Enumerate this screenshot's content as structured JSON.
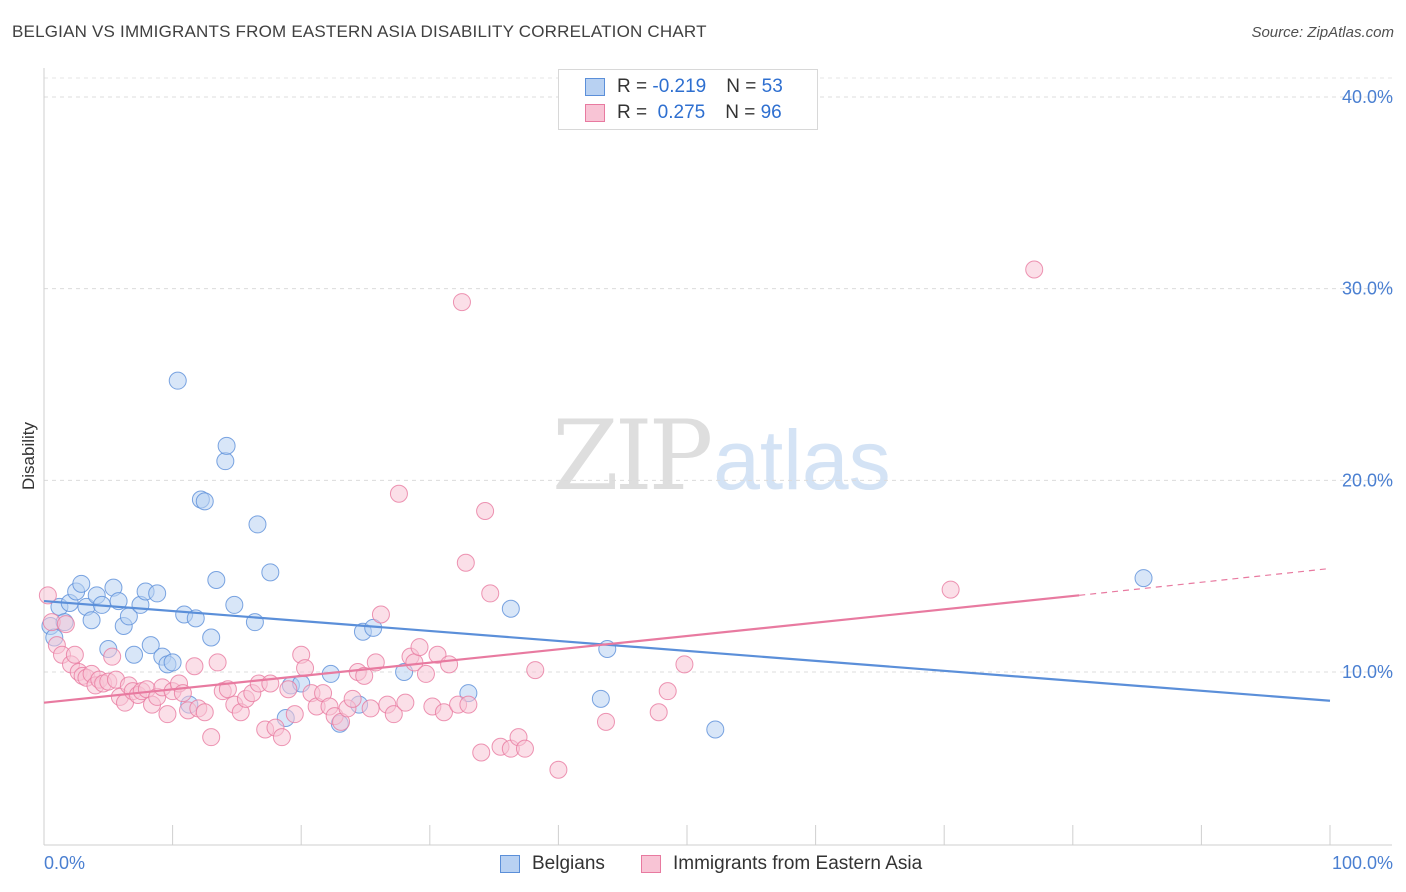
{
  "header": {
    "title": "BELGIAN VS IMMIGRANTS FROM EASTERN ASIA DISABILITY CORRELATION CHART",
    "source": "Source: ZipAtlas.com"
  },
  "watermark": {
    "zip": "ZIP",
    "atlas": "atlas"
  },
  "stats": {
    "rows": [
      {
        "r_label": "R = ",
        "r_value": "-0.219",
        "n_label": "N = ",
        "n_value": "53",
        "color": "#5b8fd9",
        "fill": "#b8d1f2"
      },
      {
        "r_label": "R = ",
        "r_value": " 0.275",
        "n_label": "N = ",
        "n_value": "96",
        "color": "#e87aa0",
        "fill": "#f8c4d5"
      }
    ]
  },
  "legend": {
    "items": [
      {
        "label": "Belgians",
        "color": "#5b8fd9",
        "fill": "#b8d1f2"
      },
      {
        "label": "Immigrants from Eastern Asia",
        "color": "#e87aa0",
        "fill": "#f8c4d5"
      }
    ]
  },
  "chart_data": {
    "type": "scatter",
    "title": "BELGIAN VS IMMIGRANTS FROM EASTERN ASIA DISABILITY CORRELATION CHART",
    "xlabel": "",
    "ylabel": "Disability",
    "xlim": [
      0,
      100
    ],
    "ylim": [
      0,
      41
    ],
    "x_tick_labels": [
      "0.0%",
      "100.0%"
    ],
    "y_ticks": [
      10,
      20,
      30,
      40
    ],
    "y_tick_labels": [
      "10.0%",
      "20.0%",
      "30.0%",
      "40.0%"
    ],
    "grid": "dashed horizontal",
    "legend_position": "bottom-center",
    "series": [
      {
        "name": "Belgians",
        "color": "#5b8fd9",
        "fill": "#b8d1f2",
        "trend": {
          "x0": 0,
          "y0": 13.7,
          "x1": 100,
          "y1": 8.5
        },
        "points": [
          [
            0.5,
            12.4
          ],
          [
            0.8,
            11.8
          ],
          [
            1.2,
            13.4
          ],
          [
            1.6,
            12.6
          ],
          [
            2.0,
            13.6
          ],
          [
            2.5,
            14.2
          ],
          [
            2.9,
            14.6
          ],
          [
            3.3,
            13.4
          ],
          [
            3.7,
            12.7
          ],
          [
            4.1,
            14.0
          ],
          [
            4.5,
            13.5
          ],
          [
            5.0,
            11.2
          ],
          [
            5.4,
            14.4
          ],
          [
            5.8,
            13.7
          ],
          [
            6.2,
            12.4
          ],
          [
            6.6,
            12.9
          ],
          [
            7.0,
            10.9
          ],
          [
            7.5,
            13.5
          ],
          [
            7.9,
            14.2
          ],
          [
            8.3,
            11.4
          ],
          [
            8.8,
            14.1
          ],
          [
            9.2,
            10.8
          ],
          [
            9.6,
            10.4
          ],
          [
            10.0,
            10.5
          ],
          [
            10.4,
            25.2
          ],
          [
            10.9,
            13.0
          ],
          [
            11.3,
            8.3
          ],
          [
            11.8,
            12.8
          ],
          [
            12.2,
            19.0
          ],
          [
            12.5,
            18.9
          ],
          [
            13.0,
            11.8
          ],
          [
            13.4,
            14.8
          ],
          [
            14.1,
            21.0
          ],
          [
            14.2,
            21.8
          ],
          [
            14.8,
            13.5
          ],
          [
            16.4,
            12.6
          ],
          [
            16.6,
            17.7
          ],
          [
            17.6,
            15.2
          ],
          [
            18.8,
            7.6
          ],
          [
            19.2,
            9.3
          ],
          [
            20.0,
            9.4
          ],
          [
            22.3,
            9.9
          ],
          [
            23.0,
            7.3
          ],
          [
            24.5,
            8.3
          ],
          [
            24.8,
            12.1
          ],
          [
            25.6,
            12.3
          ],
          [
            28.0,
            10.0
          ],
          [
            33.0,
            8.9
          ],
          [
            36.3,
            13.3
          ],
          [
            43.3,
            8.6
          ],
          [
            43.8,
            11.2
          ],
          [
            52.2,
            7.0
          ],
          [
            85.5,
            14.9
          ]
        ]
      },
      {
        "name": "Immigrants from Eastern Asia",
        "color": "#e87aa0",
        "fill": "#f8c4d5",
        "trend": {
          "x0": 0,
          "y0": 8.4,
          "x1": 80.5,
          "y1": 14.0
        },
        "trend_dashed": {
          "x0": 80.5,
          "y0": 14.0,
          "x1": 100,
          "y1": 15.4
        },
        "points": [
          [
            0.3,
            14.0
          ],
          [
            0.6,
            12.6
          ],
          [
            1.0,
            11.4
          ],
          [
            1.4,
            10.9
          ],
          [
            1.7,
            12.5
          ],
          [
            2.1,
            10.4
          ],
          [
            2.4,
            10.9
          ],
          [
            2.7,
            10.0
          ],
          [
            3.0,
            9.8
          ],
          [
            3.3,
            9.7
          ],
          [
            3.7,
            9.9
          ],
          [
            4.0,
            9.3
          ],
          [
            4.3,
            9.6
          ],
          [
            4.6,
            9.4
          ],
          [
            5.0,
            9.5
          ],
          [
            5.3,
            10.8
          ],
          [
            5.6,
            9.6
          ],
          [
            5.9,
            8.7
          ],
          [
            6.3,
            8.4
          ],
          [
            6.6,
            9.3
          ],
          [
            6.9,
            9.0
          ],
          [
            7.3,
            8.8
          ],
          [
            7.6,
            9.0
          ],
          [
            8.0,
            9.1
          ],
          [
            8.4,
            8.3
          ],
          [
            8.8,
            8.7
          ],
          [
            9.2,
            9.2
          ],
          [
            9.6,
            7.8
          ],
          [
            10.0,
            9.0
          ],
          [
            10.5,
            9.4
          ],
          [
            10.8,
            8.9
          ],
          [
            11.2,
            8.0
          ],
          [
            11.7,
            10.3
          ],
          [
            12.0,
            8.1
          ],
          [
            12.5,
            7.9
          ],
          [
            13.0,
            6.6
          ],
          [
            13.5,
            10.5
          ],
          [
            13.9,
            9.0
          ],
          [
            14.3,
            9.1
          ],
          [
            14.8,
            8.3
          ],
          [
            15.3,
            7.9
          ],
          [
            15.7,
            8.6
          ],
          [
            16.2,
            8.9
          ],
          [
            16.7,
            9.4
          ],
          [
            17.2,
            7.0
          ],
          [
            17.6,
            9.4
          ],
          [
            18.0,
            7.1
          ],
          [
            18.5,
            6.6
          ],
          [
            19.0,
            9.1
          ],
          [
            19.5,
            7.8
          ],
          [
            20.0,
            10.9
          ],
          [
            20.3,
            10.2
          ],
          [
            20.8,
            8.9
          ],
          [
            21.2,
            8.2
          ],
          [
            21.7,
            8.9
          ],
          [
            22.2,
            8.2
          ],
          [
            22.6,
            7.7
          ],
          [
            23.1,
            7.4
          ],
          [
            23.6,
            8.1
          ],
          [
            24.0,
            8.6
          ],
          [
            24.4,
            10.0
          ],
          [
            24.9,
            9.8
          ],
          [
            25.4,
            8.1
          ],
          [
            25.8,
            10.5
          ],
          [
            26.2,
            13.0
          ],
          [
            26.7,
            8.3
          ],
          [
            27.2,
            7.8
          ],
          [
            27.6,
            19.3
          ],
          [
            28.1,
            8.4
          ],
          [
            28.5,
            10.8
          ],
          [
            28.8,
            10.5
          ],
          [
            29.2,
            11.3
          ],
          [
            29.7,
            9.9
          ],
          [
            30.2,
            8.2
          ],
          [
            30.6,
            10.9
          ],
          [
            31.1,
            7.9
          ],
          [
            31.5,
            10.4
          ],
          [
            32.2,
            8.3
          ],
          [
            32.5,
            29.3
          ],
          [
            32.8,
            15.7
          ],
          [
            33.0,
            8.3
          ],
          [
            34.0,
            5.8
          ],
          [
            34.3,
            18.4
          ],
          [
            34.7,
            14.1
          ],
          [
            35.5,
            6.1
          ],
          [
            36.3,
            6.0
          ],
          [
            36.9,
            6.6
          ],
          [
            37.4,
            6.0
          ],
          [
            38.2,
            10.1
          ],
          [
            40.0,
            4.9
          ],
          [
            43.7,
            7.4
          ],
          [
            47.8,
            7.9
          ],
          [
            48.5,
            9.0
          ],
          [
            49.8,
            10.4
          ],
          [
            70.5,
            14.3
          ],
          [
            77.0,
            31.0
          ]
        ]
      }
    ]
  }
}
